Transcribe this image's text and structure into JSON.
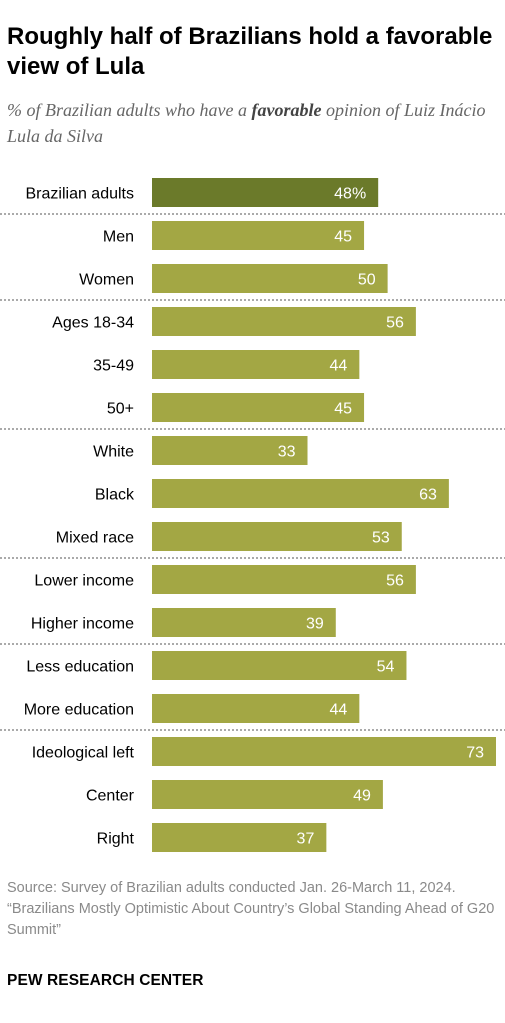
{
  "title": "Roughly half of Brazilians hold a favorable view of Lula",
  "subtitle": {
    "before": "% of Brazilian adults who have a ",
    "emphasis": "favorable",
    "after": " opinion of Luiz Inácio Lula da Silva"
  },
  "colors": {
    "total": "#6b7a2a",
    "bar": "#a3a744",
    "label": "#ffffff",
    "divider": "#555555"
  },
  "chart_data": {
    "type": "bar",
    "orientation": "horizontal",
    "xlim": [
      0,
      73
    ],
    "categories": [
      "Brazilian adults",
      "Men",
      "Women",
      "Ages 18-34",
      "35-49",
      "50+",
      "White",
      "Black",
      "Mixed race",
      "Lower income",
      "Higher income",
      "Less education",
      "More education",
      "Ideological left",
      "Center",
      "Right"
    ],
    "values": [
      48,
      45,
      50,
      56,
      44,
      45,
      33,
      63,
      53,
      56,
      39,
      54,
      44,
      73,
      49,
      37
    ],
    "value_labels": [
      "48%",
      "45",
      "50",
      "56",
      "44",
      "45",
      "33",
      "63",
      "53",
      "56",
      "39",
      "54",
      "44",
      "73",
      "49",
      "37"
    ],
    "group_breaks_after": [
      0,
      2,
      5,
      8,
      10,
      12
    ]
  },
  "footer": {
    "source": "Source: Survey of Brazilian adults conducted Jan. 26-March 11, 2024.",
    "report": "“Brazilians Mostly Optimistic About Country’s Global Standing Ahead of G20 Summit”"
  },
  "brand": "PEW RESEARCH CENTER"
}
